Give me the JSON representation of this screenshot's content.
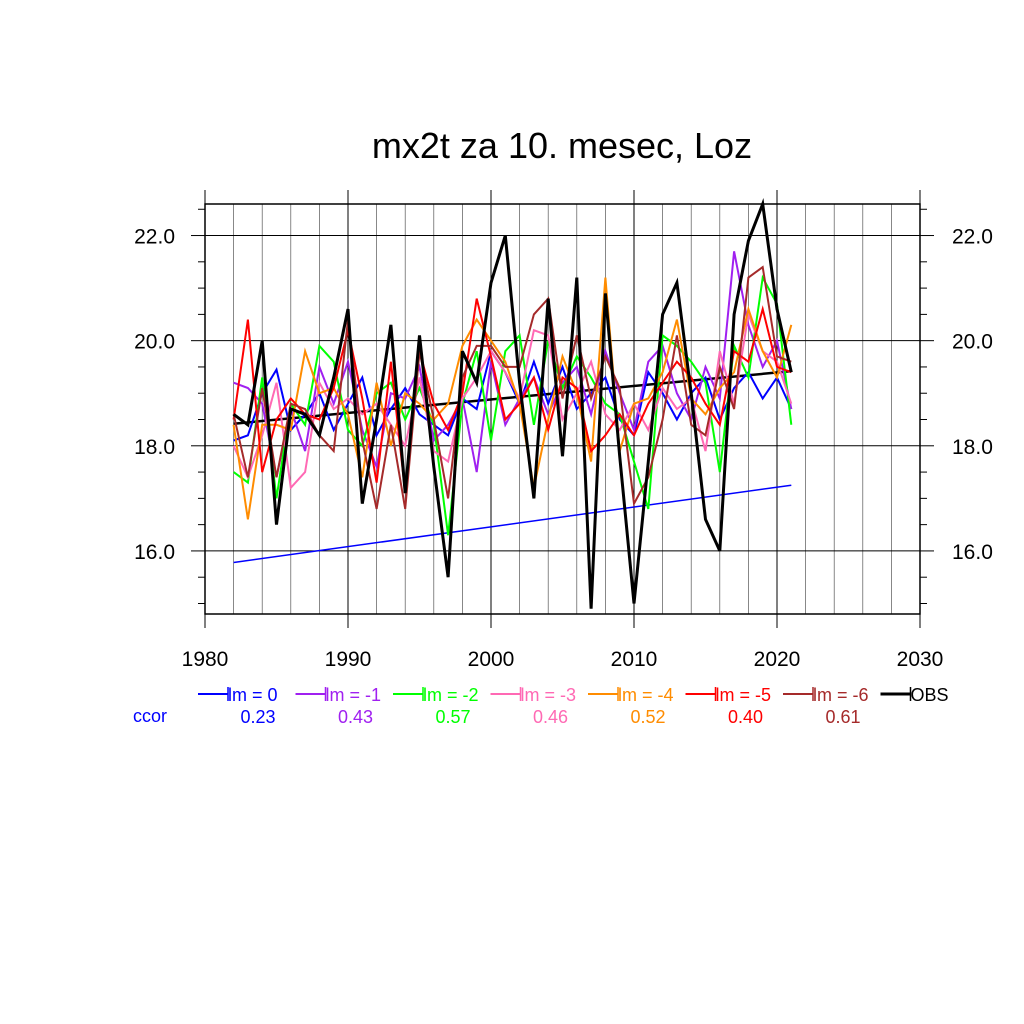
{
  "chart_data": {
    "type": "line",
    "title": "mx2t za 10. mesec, Loz",
    "xlabel": "",
    "ylabel": "",
    "xlim": [
      1980,
      2030
    ],
    "ylim": [
      14.8,
      22.6
    ],
    "x_ticks": [
      "1980",
      "1990",
      "2000",
      "2010",
      "2020",
      "2030"
    ],
    "y_ticks": [
      "16.0",
      "18.0",
      "20.0",
      "22.0"
    ],
    "grid": true,
    "ccor_label": "ccor",
    "x": [
      1982,
      1983,
      1984,
      1985,
      1986,
      1987,
      1988,
      1989,
      1990,
      1991,
      1992,
      1993,
      1994,
      1995,
      1996,
      1997,
      1998,
      1999,
      2000,
      2001,
      2002,
      2003,
      2004,
      2005,
      2006,
      2007,
      2008,
      2009,
      2010,
      2011,
      2012,
      2013,
      2014,
      2015,
      2016,
      2017,
      2018,
      2019,
      2020,
      2021
    ],
    "series": [
      {
        "name": "lm = 0",
        "ccor": "0.23",
        "color": "#0000ff",
        "values": [
          18.1,
          18.2,
          19.0,
          19.45,
          18.3,
          18.6,
          19.0,
          18.3,
          18.8,
          19.3,
          18.2,
          18.7,
          19.1,
          18.6,
          18.4,
          18.2,
          18.9,
          18.7,
          19.8,
          19.4,
          18.8,
          19.6,
          18.8,
          19.5,
          18.7,
          19.0,
          19.3,
          18.5,
          18.2,
          19.4,
          19.0,
          18.5,
          19.0,
          19.3,
          18.5,
          19.1,
          19.4,
          18.9,
          19.3,
          18.7
        ]
      },
      {
        "name": "lm = -1",
        "ccor": "0.43",
        "color": "#a020f0",
        "values": [
          19.2,
          19.1,
          18.8,
          17.4,
          18.7,
          17.9,
          19.5,
          18.8,
          19.6,
          18.3,
          17.6,
          19.0,
          18.9,
          19.5,
          18.1,
          18.4,
          18.9,
          17.5,
          19.6,
          18.4,
          18.9,
          19.3,
          18.6,
          19.2,
          19.5,
          18.6,
          19.8,
          19.0,
          18.3,
          19.6,
          19.9,
          19.0,
          18.5,
          19.5,
          18.9,
          21.7,
          20.3,
          19.5,
          20.0,
          18.7
        ]
      },
      {
        "name": "lm = -2",
        "ccor": "0.57",
        "color": "#00ff00",
        "values": [
          17.5,
          17.3,
          19.3,
          17.0,
          18.8,
          18.4,
          19.9,
          19.6,
          18.3,
          18.0,
          19.0,
          19.2,
          18.5,
          19.1,
          18.4,
          16.3,
          18.8,
          19.8,
          18.1,
          19.8,
          20.1,
          18.4,
          20.0,
          19.1,
          19.7,
          19.3,
          18.8,
          18.6,
          17.7,
          16.8,
          20.1,
          19.9,
          19.6,
          19.2,
          17.5,
          19.9,
          19.3,
          21.2,
          20.7,
          18.4
        ]
      },
      {
        "name": "lm = -3",
        "ccor": "0.46",
        "color": "#ff69b4",
        "values": [
          18.0,
          17.4,
          18.2,
          19.2,
          17.2,
          17.5,
          19.2,
          18.7,
          18.9,
          18.6,
          18.8,
          18.4,
          18.0,
          19.3,
          17.9,
          17.7,
          18.9,
          19.3,
          19.8,
          19.4,
          18.9,
          20.2,
          20.1,
          18.5,
          19.0,
          19.6,
          18.6,
          18.3,
          18.8,
          18.3,
          19.1,
          18.7,
          18.9,
          17.9,
          19.8,
          18.8,
          20.5,
          19.8,
          19.6,
          18.8
        ]
      },
      {
        "name": "lm = -4",
        "ccor": "0.52",
        "color": "#ff8c00",
        "values": [
          18.4,
          16.6,
          18.4,
          18.4,
          18.3,
          19.8,
          19.0,
          19.1,
          18.6,
          17.4,
          19.2,
          18.0,
          19.0,
          18.8,
          18.5,
          18.8,
          19.9,
          20.4,
          20.0,
          19.6,
          18.8,
          17.2,
          18.5,
          19.7,
          19.0,
          17.7,
          21.2,
          17.9,
          18.8,
          18.9,
          19.4,
          20.4,
          18.9,
          18.6,
          19.1,
          19.4,
          20.6,
          19.8,
          19.3,
          20.3
        ]
      },
      {
        "name": "lm = -5",
        "ccor": "0.40",
        "color": "#ff0000",
        "values": [
          18.5,
          20.4,
          17.5,
          18.5,
          18.9,
          18.6,
          18.5,
          19.1,
          20.2,
          18.9,
          17.3,
          19.6,
          17.1,
          19.8,
          18.8,
          18.3,
          19.0,
          20.8,
          19.7,
          18.5,
          18.8,
          19.3,
          18.3,
          19.3,
          19.1,
          17.9,
          18.2,
          18.6,
          18.2,
          18.8,
          19.2,
          19.6,
          19.3,
          18.8,
          18.4,
          19.8,
          19.6,
          20.6,
          19.5,
          19.4
        ]
      },
      {
        "name": "lm = -6",
        "ccor": "0.61",
        "color": "#a52a2a",
        "values": [
          18.6,
          17.4,
          19.1,
          17.4,
          18.8,
          18.7,
          18.2,
          17.9,
          20.4,
          18.1,
          16.8,
          18.4,
          16.8,
          19.8,
          18.5,
          17.0,
          19.3,
          19.9,
          19.9,
          19.5,
          19.5,
          20.5,
          20.8,
          18.9,
          20.1,
          18.9,
          19.7,
          19.1,
          16.9,
          17.4,
          18.5,
          20.1,
          18.4,
          18.2,
          19.5,
          18.7,
          21.2,
          21.4,
          19.7,
          19.6
        ]
      },
      {
        "name": "OBS",
        "ccor": "",
        "color": "#000000",
        "values": [
          18.6,
          18.4,
          20.0,
          16.5,
          18.7,
          18.6,
          18.2,
          19.3,
          20.6,
          16.9,
          18.5,
          20.3,
          17.1,
          20.1,
          17.6,
          15.5,
          19.8,
          19.2,
          21.1,
          22.0,
          19.2,
          17.0,
          20.8,
          17.8,
          21.2,
          14.9,
          20.9,
          17.8,
          15.0,
          17.7,
          20.5,
          21.1,
          19.0,
          16.6,
          16.0,
          20.5,
          21.9,
          22.6,
          20.6,
          19.4
        ]
      }
    ],
    "trend_lines": [
      {
        "name": "obs-trend",
        "color": "#000000",
        "x": [
          1982,
          2021
        ],
        "y": [
          18.42,
          19.42
        ]
      },
      {
        "name": "lm0-trend",
        "color": "#0000ff",
        "x": [
          1982,
          2021
        ],
        "y": [
          15.78,
          17.25
        ]
      }
    ]
  }
}
